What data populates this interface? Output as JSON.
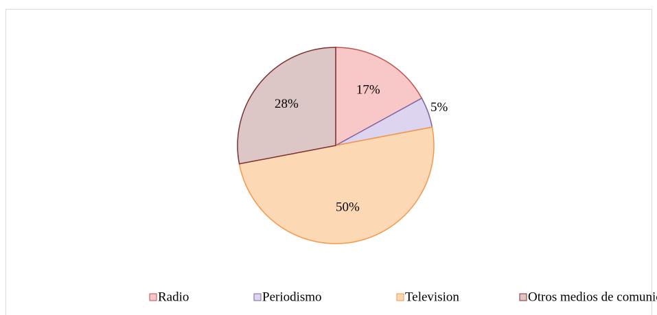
{
  "chart_data": {
    "type": "pie",
    "categories": [
      "Radio",
      "Periodismo",
      "Television",
      "Otros medios de comunicación"
    ],
    "values": [
      17,
      5,
      50,
      28
    ],
    "value_labels": [
      "17%",
      "5%",
      "50%",
      "28%"
    ],
    "colors": [
      "#f8c8c8",
      "#ddd4ef",
      "#fdd8b4",
      "#dcc6c6"
    ],
    "edge_colors": [
      "#c0504d",
      "#8064a2",
      "#f79646",
      "#7f2f2f"
    ],
    "legend": "bottom"
  }
}
